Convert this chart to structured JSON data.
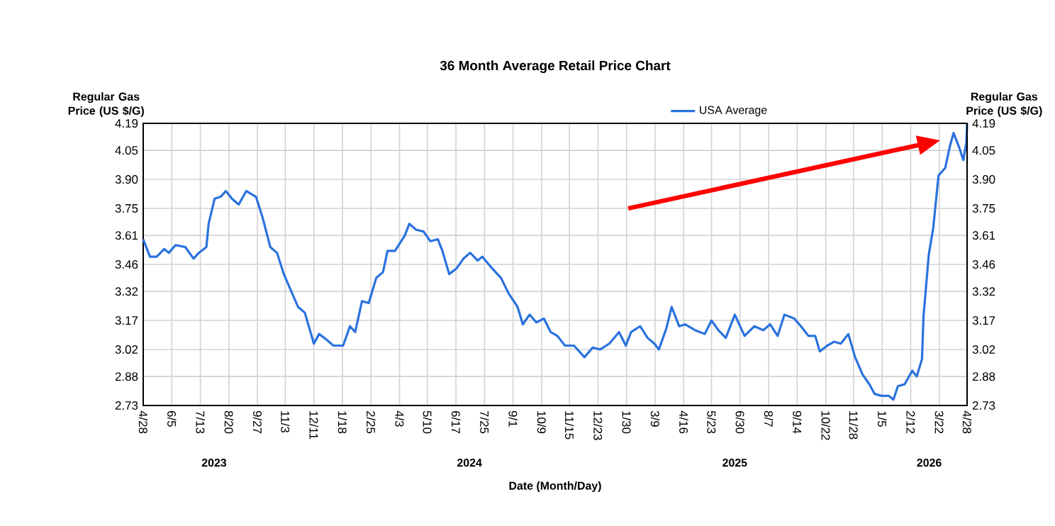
{
  "chart_data": {
    "type": "line",
    "title": "36 Month Average Retail Price Chart",
    "xlabel": "Date (Month/Day)",
    "ylabel": "Regular Gas Price (US $/G)",
    "y2label": "Regular Gas Price (US $/G)",
    "annotations": [
      "2023",
      "2024",
      "2025",
      "2026"
    ],
    "legend": "top",
    "grid": true,
    "marker": "none",
    "line_style": "solid",
    "xlim": [
      "2023-04-28",
      "2026-04-28"
    ],
    "xticks": [
      {
        "value": "2023-04-28",
        "label": "4/28"
      },
      {
        "value": "2023-06-05",
        "label": "6/5"
      },
      {
        "value": "2023-07-13",
        "label": "7/13"
      },
      {
        "value": "2023-08-20",
        "label": "8/20"
      },
      {
        "value": "2023-09-27",
        "label": "9/27"
      },
      {
        "value": "2023-11-03",
        "label": "11/3"
      },
      {
        "value": "2023-12-11",
        "label": "12/11"
      },
      {
        "value": "2024-01-18",
        "label": "1/18"
      },
      {
        "value": "2024-02-25",
        "label": "2/25"
      },
      {
        "value": "2024-04-03",
        "label": "4/3"
      },
      {
        "value": "2024-05-10",
        "label": "5/10"
      },
      {
        "value": "2024-06-17",
        "label": "6/17"
      },
      {
        "value": "2024-07-25",
        "label": "7/25"
      },
      {
        "value": "2024-09-01",
        "label": "9/1"
      },
      {
        "value": "2024-10-09",
        "label": "10/9"
      },
      {
        "value": "2024-11-15",
        "label": "11/15"
      },
      {
        "value": "2024-12-23",
        "label": "12/23"
      },
      {
        "value": "2025-01-30",
        "label": "1/30"
      },
      {
        "value": "2025-03-09",
        "label": "3/9"
      },
      {
        "value": "2025-04-16",
        "label": "4/16"
      },
      {
        "value": "2025-05-23",
        "label": "5/23"
      },
      {
        "value": "2025-06-30",
        "label": "6/30"
      },
      {
        "value": "2025-08-07",
        "label": "8/7"
      },
      {
        "value": "2025-09-14",
        "label": "9/14"
      },
      {
        "value": "2025-10-22",
        "label": "10/22"
      },
      {
        "value": "2025-11-28",
        "label": "11/28"
      },
      {
        "value": "2026-01-05",
        "label": "1/5"
      },
      {
        "value": "2026-02-12",
        "label": "2/12"
      },
      {
        "value": "2026-03-22",
        "label": "3/22"
      },
      {
        "value": "2026-04-28",
        "label": "4/28"
      }
    ],
    "ylim": [
      2.73,
      4.19
    ],
    "yticks": [
      2.73,
      2.88,
      3.02,
      3.17,
      3.32,
      3.46,
      3.61,
      3.75,
      {
        "value": 3.9,
        "label": "3.90"
      },
      4.05,
      4.19
    ],
    "y2lim": [
      2.73,
      4.19
    ],
    "y2ticks": [
      2.73,
      2.88,
      3.02,
      3.17,
      3.32,
      3.46,
      3.61,
      3.75,
      {
        "value": 3.9,
        "label": "3.90"
      },
      4.05,
      4.19
    ],
    "series": [
      {
        "name": "USA Average",
        "color": "#2a72de",
        "x": [
          "2023-04-28",
          "2023-05-07",
          "2023-05-16",
          "2023-05-26",
          "2023-06-01",
          "2023-06-10",
          "2023-06-23",
          "2023-07-04",
          "2023-07-11",
          "2023-07-21",
          "2023-07-24",
          "2023-08-01",
          "2023-08-09",
          "2023-08-16",
          "2023-08-24",
          "2023-09-02",
          "2023-09-12",
          "2023-09-25",
          "2023-10-04",
          "2023-10-14",
          "2023-10-23",
          "2023-11-01",
          "2023-11-11",
          "2023-11-20",
          "2023-11-29",
          "2023-12-11",
          "2023-12-18",
          "2023-12-28",
          "2024-01-06",
          "2024-01-19",
          "2024-01-28",
          "2024-02-04",
          "2024-02-13",
          "2024-02-22",
          "2024-03-03",
          "2024-03-12",
          "2024-03-18",
          "2024-03-28",
          "2024-04-10",
          "2024-04-16",
          "2024-04-25",
          "2024-05-05",
          "2024-05-14",
          "2024-05-24",
          "2024-05-30",
          "2024-06-08",
          "2024-06-18",
          "2024-06-27",
          "2024-07-06",
          "2024-07-16",
          "2024-07-22",
          "2024-08-04",
          "2024-08-16",
          "2024-08-26",
          "2024-09-07",
          "2024-09-14",
          "2024-09-23",
          "2024-10-02",
          "2024-10-12",
          "2024-10-21",
          "2024-10-30",
          "2024-11-09",
          "2024-11-21",
          "2024-12-05",
          "2024-12-16",
          "2024-12-26",
          "2025-01-07",
          "2025-01-20",
          "2025-01-29",
          "2025-02-05",
          "2025-02-17",
          "2025-02-27",
          "2025-03-08",
          "2025-03-14",
          "2025-03-24",
          "2025-03-31",
          "2025-04-10",
          "2025-04-18",
          "2025-05-01",
          "2025-05-14",
          "2025-05-23",
          "2025-06-01",
          "2025-06-11",
          "2025-06-23",
          "2025-07-06",
          "2025-07-19",
          "2025-07-31",
          "2025-08-09",
          "2025-08-19",
          "2025-08-28",
          "2025-09-10",
          "2025-09-19",
          "2025-09-29",
          "2025-10-08",
          "2025-10-14",
          "2025-10-24",
          "2025-11-02",
          "2025-11-11",
          "2025-11-21",
          "2025-11-30",
          "2025-12-10",
          "2025-12-19",
          "2025-12-26",
          "2026-01-04",
          "2026-01-14",
          "2026-01-20",
          "2026-01-26",
          "2026-02-04",
          "2026-02-14",
          "2026-02-20",
          "2026-02-27",
          "2026-03-01",
          "2026-03-08",
          "2026-03-14",
          "2026-03-21",
          "2026-03-30",
          "2026-04-05",
          "2026-04-10",
          "2026-04-18",
          "2026-04-23",
          "2026-04-27",
          "2026-04-28"
        ],
        "values": [
          3.59,
          3.5,
          3.5,
          3.54,
          3.52,
          3.56,
          3.55,
          3.49,
          3.52,
          3.55,
          3.67,
          3.8,
          3.81,
          3.84,
          3.8,
          3.77,
          3.84,
          3.81,
          3.7,
          3.55,
          3.52,
          3.41,
          3.32,
          3.24,
          3.21,
          3.05,
          3.1,
          3.07,
          3.04,
          3.04,
          3.14,
          3.11,
          3.27,
          3.26,
          3.39,
          3.42,
          3.53,
          3.53,
          3.61,
          3.67,
          3.64,
          3.63,
          3.58,
          3.59,
          3.53,
          3.41,
          3.44,
          3.49,
          3.52,
          3.48,
          3.5,
          3.44,
          3.39,
          3.31,
          3.24,
          3.15,
          3.2,
          3.16,
          3.18,
          3.11,
          3.09,
          3.04,
          3.04,
          2.98,
          3.03,
          3.02,
          3.05,
          3.11,
          3.04,
          3.11,
          3.14,
          3.08,
          3.05,
          3.02,
          3.13,
          3.24,
          3.14,
          3.15,
          3.12,
          3.1,
          3.17,
          3.12,
          3.08,
          3.2,
          3.09,
          3.14,
          3.12,
          3.15,
          3.09,
          3.2,
          3.18,
          3.14,
          3.09,
          3.09,
          3.01,
          3.04,
          3.06,
          3.05,
          3.1,
          2.98,
          2.89,
          2.84,
          2.79,
          2.78,
          2.78,
          2.76,
          2.83,
          2.84,
          2.91,
          2.88,
          2.97,
          3.19,
          3.51,
          3.65,
          3.92,
          3.96,
          4.07,
          4.14,
          4.06,
          4.0,
          4.09,
          4.19
        ]
      }
    ]
  }
}
